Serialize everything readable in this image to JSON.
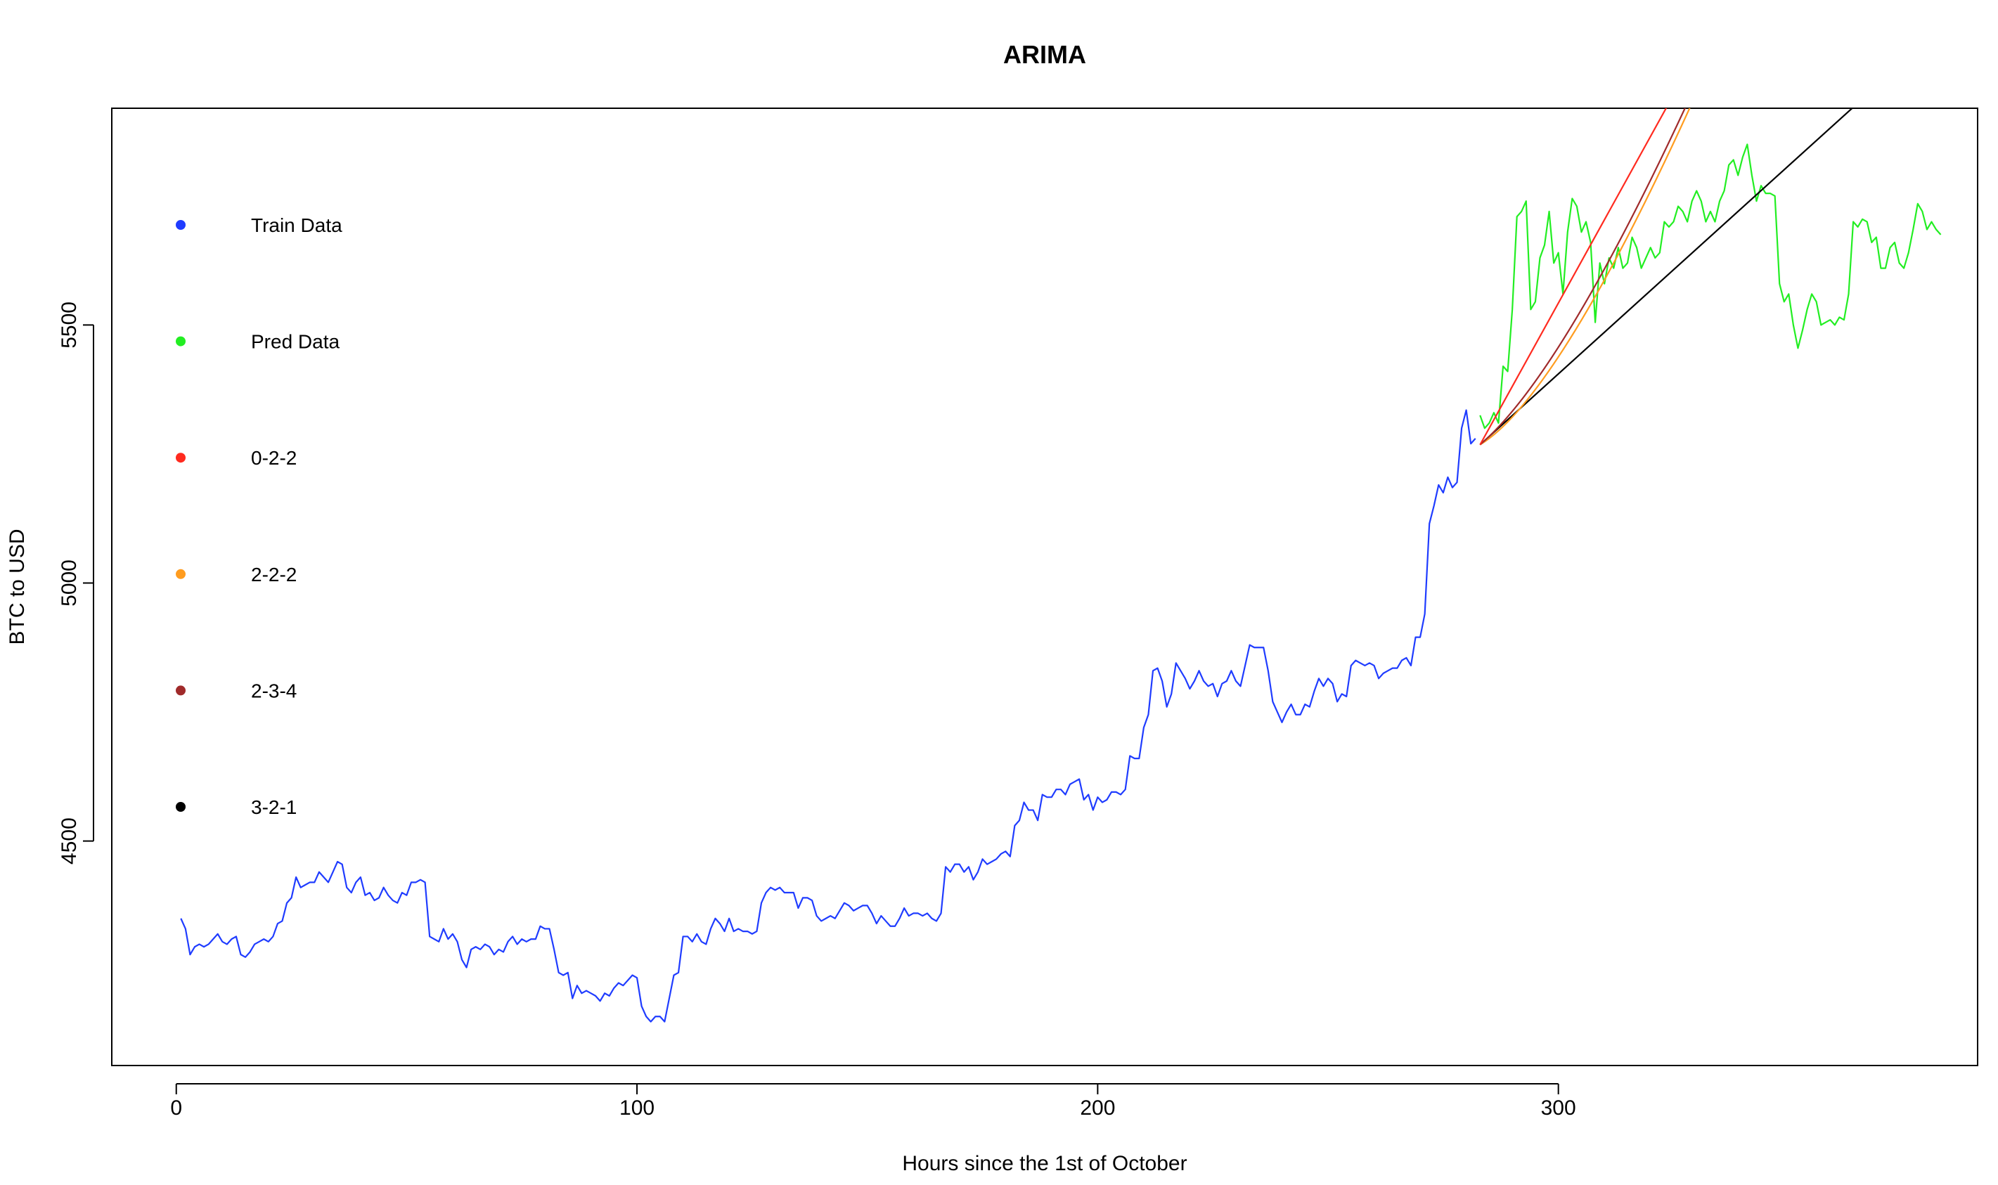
{
  "chart_data": {
    "type": "line",
    "title": "ARIMA",
    "xlabel": "Hours since the 1st of October",
    "ylabel": "BTC to USD",
    "xlim": [
      -14,
      391
    ],
    "ylim": [
      4065,
      5920
    ],
    "x_ticks": [
      0,
      100,
      200,
      300
    ],
    "y_ticks": [
      4500,
      5000,
      5500
    ],
    "grid": false,
    "legend_position": "top-left",
    "legend": [
      {
        "label": "Train Data",
        "color": "#1f3cff"
      },
      {
        "label": "Pred Data",
        "color": "#22ee22"
      },
      {
        "label": "0-2-2",
        "color": "#ff2a1f"
      },
      {
        "label": "2-2-2",
        "color": "#ff9c1f"
      },
      {
        "label": "2-3-4",
        "color": "#a02a2a"
      },
      {
        "label": "3-2-1",
        "color": "#000000"
      }
    ],
    "series": [
      {
        "name": "Train Data",
        "color": "#1f3cff",
        "x_start": 1,
        "values": [
          4350,
          4330,
          4280,
          4295,
          4300,
          4295,
          4300,
          4310,
          4320,
          4305,
          4300,
          4310,
          4315,
          4280,
          4275,
          4285,
          4300,
          4305,
          4310,
          4305,
          4315,
          4340,
          4345,
          4380,
          4390,
          4430,
          4410,
          4415,
          4420,
          4420,
          4440,
          4430,
          4420,
          4440,
          4460,
          4455,
          4410,
          4400,
          4420,
          4430,
          4395,
          4400,
          4385,
          4390,
          4410,
          4395,
          4385,
          4380,
          4400,
          4395,
          4420,
          4420,
          4425,
          4420,
          4315,
          4310,
          4305,
          4330,
          4310,
          4320,
          4305,
          4270,
          4255,
          4290,
          4295,
          4290,
          4300,
          4295,
          4280,
          4290,
          4285,
          4305,
          4315,
          4300,
          4310,
          4305,
          4310,
          4310,
          4335,
          4330,
          4330,
          4290,
          4245,
          4240,
          4245,
          4195,
          4220,
          4205,
          4210,
          4205,
          4200,
          4190,
          4205,
          4200,
          4215,
          4225,
          4220,
          4230,
          4240,
          4235,
          4180,
          4160,
          4150,
          4160,
          4160,
          4150,
          4195,
          4240,
          4245,
          4315,
          4315,
          4305,
          4320,
          4305,
          4300,
          4330,
          4350,
          4340,
          4325,
          4350,
          4325,
          4330,
          4325,
          4325,
          4320,
          4325,
          4380,
          4400,
          4410,
          4405,
          4410,
          4400,
          4400,
          4400,
          4370,
          4390,
          4390,
          4385,
          4355,
          4345,
          4350,
          4355,
          4350,
          4365,
          4380,
          4375,
          4365,
          4370,
          4375,
          4375,
          4360,
          4340,
          4355,
          4345,
          4335,
          4335,
          4350,
          4370,
          4355,
          4360,
          4360,
          4355,
          4360,
          4350,
          4345,
          4360,
          4450,
          4440,
          4455,
          4455,
          4440,
          4450,
          4425,
          4440,
          4465,
          4455,
          4460,
          4465,
          4475,
          4480,
          4470,
          4530,
          4540,
          4575,
          4560,
          4560,
          4540,
          4590,
          4585,
          4585,
          4600,
          4600,
          4590,
          4610,
          4615,
          4620,
          4580,
          4590,
          4560,
          4585,
          4575,
          4580,
          4595,
          4595,
          4590,
          4600,
          4665,
          4660,
          4660,
          4720,
          4745,
          4830,
          4835,
          4810,
          4760,
          4785,
          4845,
          4830,
          4815,
          4795,
          4810,
          4830,
          4810,
          4800,
          4805,
          4780,
          4805,
          4810,
          4830,
          4810,
          4800,
          4840,
          4880,
          4875,
          4875,
          4875,
          4830,
          4770,
          4750,
          4730,
          4750,
          4765,
          4745,
          4745,
          4765,
          4760,
          4790,
          4815,
          4800,
          4815,
          4805,
          4770,
          4785,
          4780,
          4840,
          4850,
          4845,
          4840,
          4845,
          4840,
          4815,
          4825,
          4830,
          4835,
          4835,
          4850,
          4855,
          4840,
          4895,
          4895,
          4940,
          5115,
          5150,
          5190,
          5175,
          5205,
          5185,
          5195,
          5300,
          5335,
          5270,
          5280
        ]
      },
      {
        "name": "Pred Data",
        "color": "#22ee22",
        "x_start": 283,
        "values": [
          5325,
          5300,
          5310,
          5330,
          5310,
          5420,
          5410,
          5530,
          5710,
          5720,
          5740,
          5530,
          5545,
          5630,
          5655,
          5720,
          5620,
          5640,
          5560,
          5680,
          5745,
          5730,
          5680,
          5700,
          5660,
          5505,
          5620,
          5580,
          5630,
          5610,
          5650,
          5610,
          5620,
          5670,
          5650,
          5610,
          5630,
          5650,
          5630,
          5640,
          5700,
          5690,
          5700,
          5730,
          5720,
          5700,
          5740,
          5760,
          5740,
          5700,
          5720,
          5700,
          5740,
          5760,
          5810,
          5820,
          5790,
          5825,
          5850,
          5790,
          5740,
          5770,
          5755,
          5755,
          5750,
          5580,
          5545,
          5560,
          5500,
          5455,
          5490,
          5530,
          5560,
          5545,
          5500,
          5505,
          5510,
          5500,
          5515,
          5510,
          5560,
          5700,
          5690,
          5705,
          5700,
          5660,
          5670,
          5610,
          5610,
          5650,
          5660,
          5620,
          5610,
          5640,
          5685,
          5735,
          5720,
          5685,
          5700,
          5685,
          5675
        ]
      },
      {
        "name": "0-2-2",
        "color": "#ff2a1f",
        "points": [
          [
            283,
            5268
          ],
          [
            324,
            5930
          ]
        ]
      },
      {
        "name": "2-2-2",
        "color": "#ff9c1f",
        "points": [
          [
            283,
            5268
          ],
          [
            303,
            5480
          ],
          [
            329,
            5930
          ]
        ]
      },
      {
        "name": "2-3-4",
        "color": "#a02a2a",
        "points": [
          [
            283,
            5268
          ],
          [
            303,
            5500
          ],
          [
            328,
            5930
          ]
        ]
      },
      {
        "name": "3-2-1",
        "color": "#000000",
        "points": [
          [
            283,
            5268
          ],
          [
            365,
            5930
          ]
        ]
      }
    ]
  }
}
